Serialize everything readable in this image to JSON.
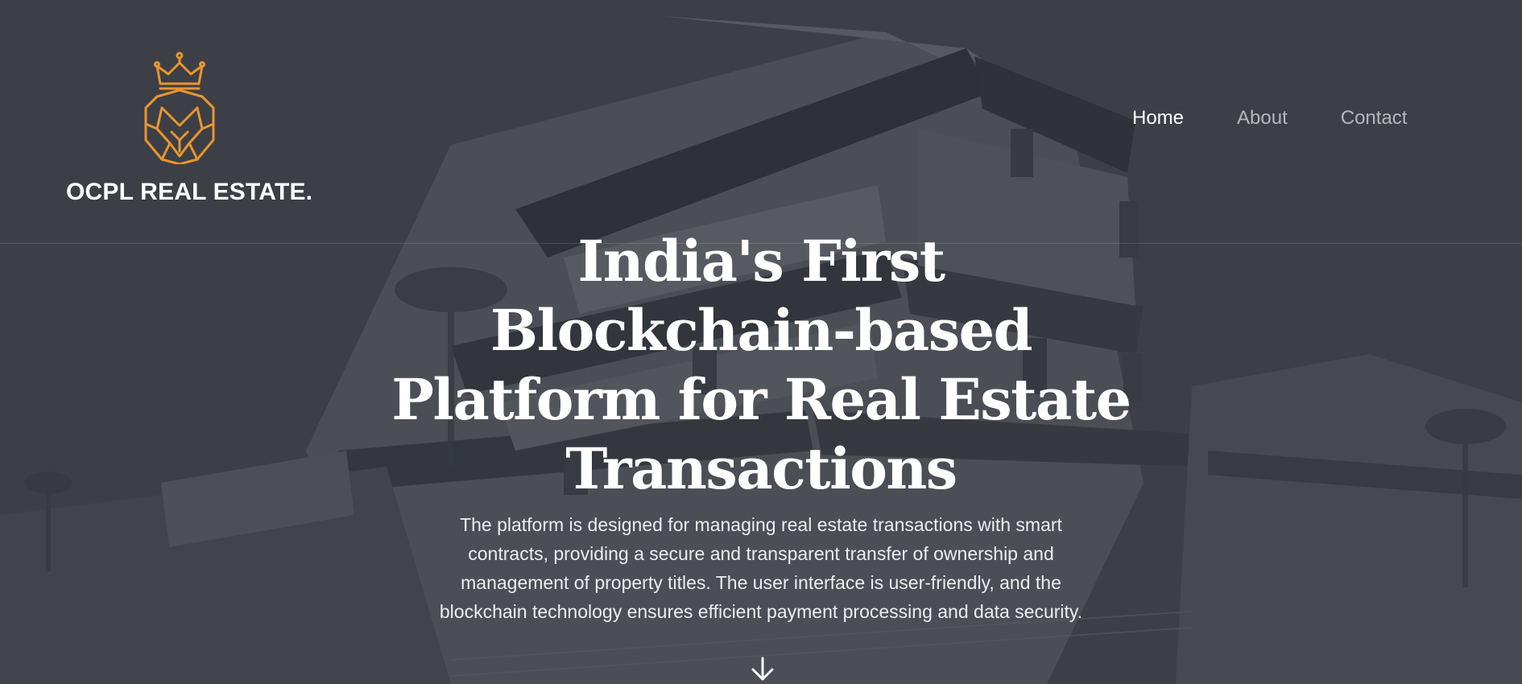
{
  "brand": {
    "name": "OCPL REAL ESTATE.",
    "logo_icon": "crowned-lion-icon",
    "accent_color": "#e8962e"
  },
  "nav": {
    "items": [
      {
        "label": "Home",
        "active": true
      },
      {
        "label": "About",
        "active": false
      },
      {
        "label": "Contact",
        "active": false
      }
    ]
  },
  "hero": {
    "headline_line1": "India's First",
    "headline_line2": "Blockchain-based",
    "headline_line3": "Platform for Real Estate",
    "headline_line4": "Transactions",
    "description": "The platform is designed for managing real estate transactions with smart contracts, providing a secure and transparent transfer of ownership and management of property titles. The user interface is user-friendly, and the blockchain technology ensures efficient payment processing and data security.",
    "scroll_icon": "arrow-down-icon"
  }
}
